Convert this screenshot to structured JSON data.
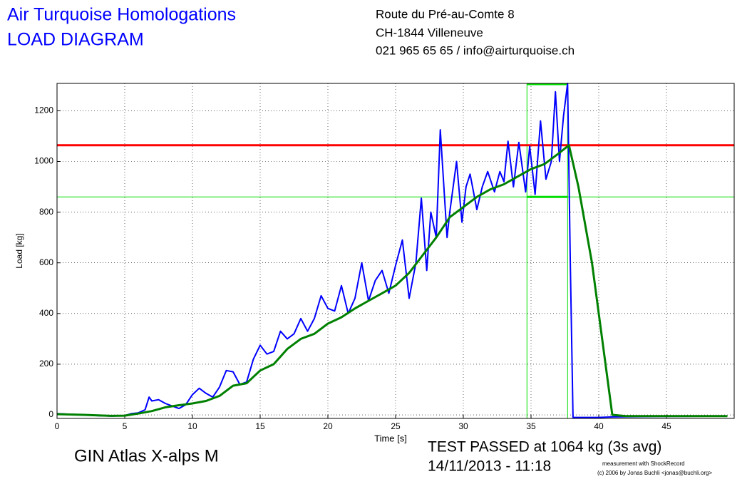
{
  "chart_data": {
    "type": "line",
    "title": [
      "Air Turquoise Homologations",
      "LOAD DIAGRAM"
    ],
    "address": [
      "Route du Pré-au-Comte 8",
      "CH-1844 Villeneuve",
      "021 965 65 65 / info@airturquoise.ch"
    ],
    "xlabel": "Time [s]",
    "ylabel": "Load [kg]",
    "glider": "GIN Atlas X-alps M",
    "result": "TEST PASSED at 1064 kg (3s avg)",
    "date": "14/11/2013 - 11:18",
    "credits": [
      "measurement with ShockRecord",
      "(c) 2006 by Jonas Buchli <jonas@buchli.org>"
    ],
    "xlim": [
      0,
      50
    ],
    "ylim": [
      -14,
      1308
    ],
    "xticks": [
      0,
      5,
      10,
      15,
      20,
      25,
      30,
      35,
      40,
      45
    ],
    "yticks": [
      0,
      200,
      400,
      600,
      800,
      1000,
      1200
    ],
    "grid": true,
    "hlines": [
      {
        "value": 1064,
        "color": "#ff0000"
      },
      {
        "value": 860,
        "color": "#00dd00"
      }
    ],
    "vlines": [
      {
        "value": 34.7,
        "color": "#00dd00"
      },
      {
        "value": 37.7,
        "color": "#00dd00"
      }
    ],
    "series": [
      {
        "color": "#0000ff",
        "x": [
          0,
          1,
          2,
          3,
          4,
          5,
          5.5,
          6,
          6.5,
          6.8,
          7,
          7.5,
          8,
          8.5,
          9,
          9.5,
          10,
          10.5,
          11,
          11.5,
          12,
          12.5,
          13,
          13.5,
          14,
          14.5,
          15,
          15.5,
          16,
          16.5,
          17,
          17.5,
          18,
          18.5,
          19,
          19.5,
          20,
          20.5,
          21,
          21.5,
          22,
          22.5,
          23,
          23.5,
          24,
          24.5,
          25,
          25.5,
          26,
          26.5,
          26.9,
          27.3,
          27.6,
          28,
          28.3,
          28.8,
          29,
          29.5,
          29.9,
          30.2,
          30.5,
          31,
          31.4,
          31.8,
          32.3,
          32.7,
          33,
          33.3,
          33.7,
          34.1,
          34.6,
          34.9,
          35.3,
          35.7,
          36.1,
          36.5,
          36.8,
          37.1,
          37.4,
          37.7,
          37.9,
          38.1,
          39,
          40,
          41,
          45,
          49.5
        ],
        "values": [
          5,
          2,
          0,
          -3,
          -5,
          -3,
          5,
          8,
          20,
          70,
          55,
          60,
          45,
          35,
          25,
          40,
          80,
          105,
          85,
          70,
          110,
          175,
          170,
          120,
          130,
          220,
          275,
          240,
          250,
          330,
          300,
          320,
          380,
          330,
          380,
          470,
          420,
          410,
          510,
          400,
          460,
          600,
          450,
          530,
          570,
          480,
          590,
          690,
          460,
          600,
          855,
          570,
          800,
          700,
          1125,
          700,
          800,
          1000,
          760,
          900,
          950,
          810,
          900,
          960,
          880,
          960,
          920,
          1080,
          900,
          1075,
          880,
          1060,
          870,
          1160,
          930,
          1000,
          1275,
          1000,
          1180,
          1308,
          600,
          -10,
          -10,
          -10,
          -8,
          -6,
          -5
        ]
      },
      {
        "color": "#008000",
        "x": [
          0,
          2,
          4,
          5,
          6,
          7,
          8,
          9,
          10,
          11,
          12,
          13,
          14,
          15,
          16,
          17,
          18,
          19,
          20,
          21,
          22,
          23,
          24,
          25,
          26,
          27,
          28,
          29,
          30,
          31,
          32,
          33,
          34,
          35,
          36,
          37,
          37.8,
          38.5,
          39.5,
          40.5,
          41,
          42,
          49.5
        ],
        "values": [
          3,
          0,
          -4,
          -3,
          5,
          15,
          30,
          38,
          45,
          55,
          75,
          115,
          125,
          175,
          200,
          260,
          300,
          320,
          360,
          385,
          420,
          450,
          480,
          510,
          560,
          630,
          700,
          780,
          820,
          860,
          890,
          910,
          940,
          970,
          990,
          1030,
          1064,
          900,
          600,
          200,
          0,
          -5,
          -5
        ]
      }
    ]
  }
}
